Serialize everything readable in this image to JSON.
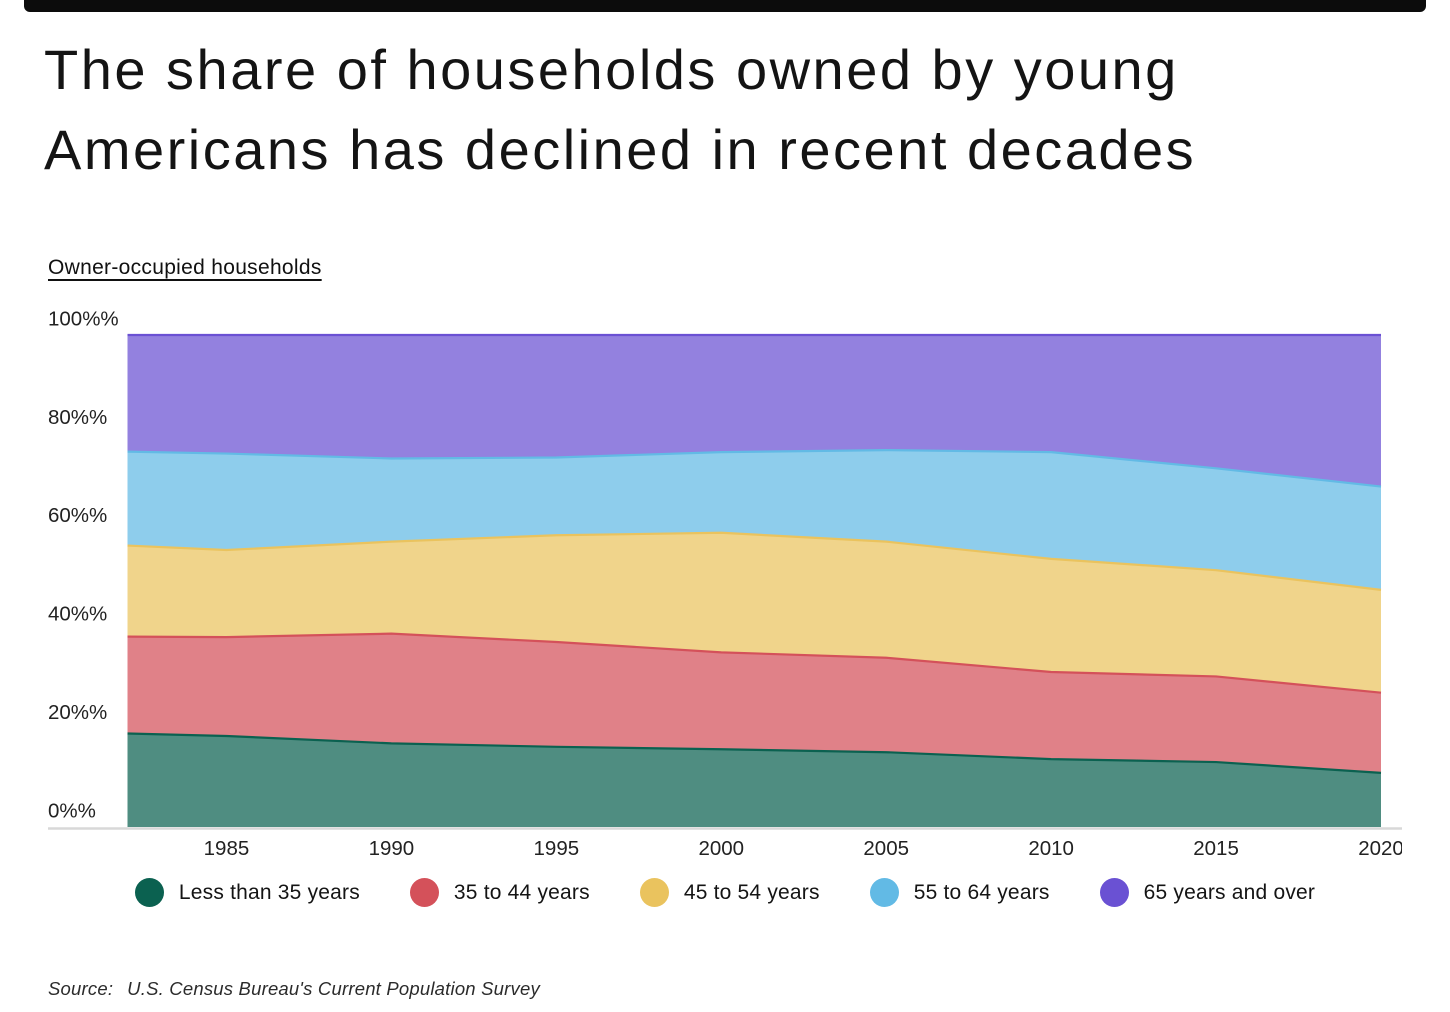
{
  "header": {
    "title_line1": "The share of households owned by young",
    "title_line2": "Americans has declined in recent decades",
    "axis_title": "Owner-occupied households"
  },
  "source": {
    "prefix": "Source:",
    "text": "U.S. Census Bureau's Current Population Survey"
  },
  "accent_bar_color": "#0c0c0c",
  "chart_data": {
    "type": "area",
    "stacked": true,
    "normalized": "100% stacked shares of owner-occupied households by age of householder",
    "x": [
      1982,
      1985,
      1990,
      1995,
      2000,
      2005,
      2010,
      2015,
      2020
    ],
    "series": [
      {
        "name": "Less than 35 years",
        "color": "#0b6150",
        "values": [
          19.0,
          18.5,
          17.0,
          16.3,
          15.8,
          15.2,
          13.8,
          13.2,
          11.0
        ]
      },
      {
        "name": "35 to 44 years",
        "color": "#d4515a",
        "values": [
          19.7,
          20.1,
          22.3,
          21.3,
          19.7,
          19.2,
          17.7,
          17.4,
          16.3
        ]
      },
      {
        "name": "45 to 54 years",
        "color": "#eac35e",
        "values": [
          18.5,
          17.7,
          18.7,
          21.7,
          24.3,
          23.6,
          23.0,
          21.6,
          20.9
        ]
      },
      {
        "name": "55 to 64 years",
        "color": "#62bae5",
        "values": [
          19.1,
          19.6,
          16.9,
          15.8,
          16.4,
          18.6,
          21.7,
          20.7,
          21.0
        ]
      },
      {
        "name": "65 years and over",
        "color": "#6a51d3",
        "values": [
          23.7,
          24.1,
          25.1,
          24.9,
          23.8,
          23.4,
          23.8,
          27.1,
          30.8
        ]
      }
    ],
    "fill_opacity": 0.72,
    "x_ticks": [
      1985,
      1990,
      1995,
      2000,
      2005,
      2010,
      2015,
      2020
    ],
    "x_tick_labels": [
      "1985",
      "1990",
      "1995",
      "2000",
      "2005",
      "2010",
      "2015",
      "2020"
    ],
    "y_ticks": [
      0,
      20,
      40,
      60,
      80,
      100
    ],
    "y_tick_labels": [
      "0%%",
      "20%%",
      "40%%",
      "60%%",
      "80%%",
      "100%%"
    ],
    "ylim": [
      0,
      100
    ],
    "grid": false,
    "legend_position": "bottom",
    "baseline_color": "#d8d8d8"
  }
}
